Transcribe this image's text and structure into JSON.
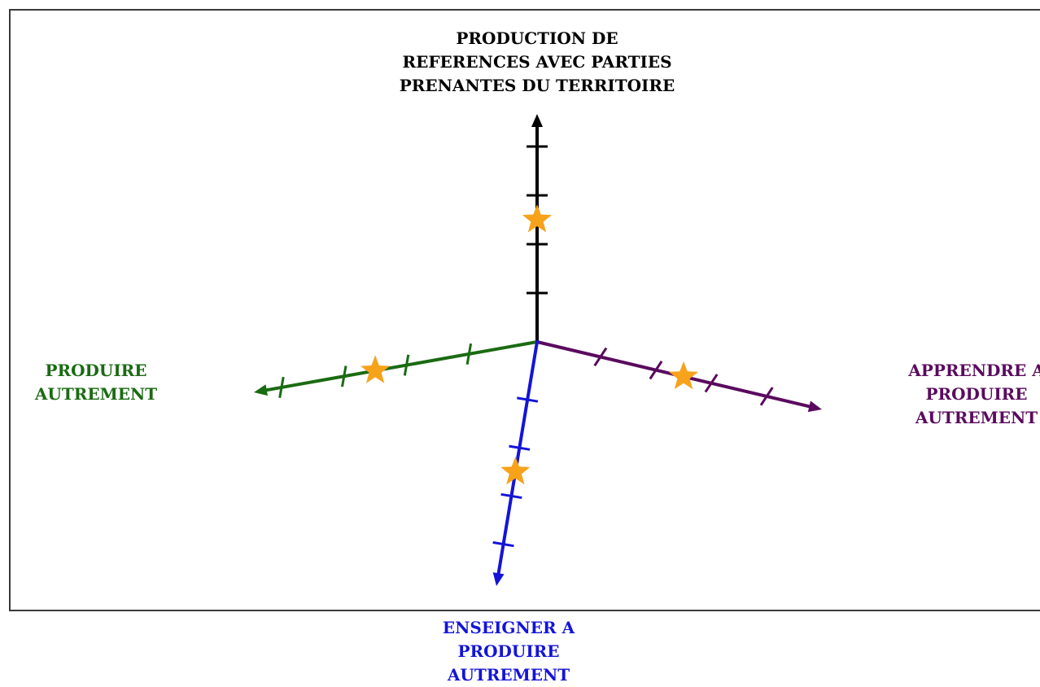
{
  "axes": {
    "top": {
      "lines": [
        "PRODUCTION DE",
        "REFERENCES AVEC PARTIES",
        "PRENANTES DU TERRITOIRE"
      ],
      "color": "#000000",
      "ticks": 4,
      "star_position": 2.5
    },
    "left": {
      "lines": [
        "PRODUIRE",
        "AUTREMENT"
      ],
      "color": "#1a6b12",
      "ticks": 4,
      "star_position": 2.5
    },
    "right": {
      "lines": [
        "APPRENDRE A",
        "PRODUIRE",
        "AUTREMENT"
      ],
      "color": "#5a0a5e",
      "ticks": 4,
      "star_position": 2.5
    },
    "bottom": {
      "lines": [
        "ENSEIGNER A",
        "PRODUIRE",
        "AUTREMENT"
      ],
      "color": "#1414d8",
      "ticks": 4,
      "star_position": 2.5
    }
  },
  "star_color": "#f7a21b"
}
